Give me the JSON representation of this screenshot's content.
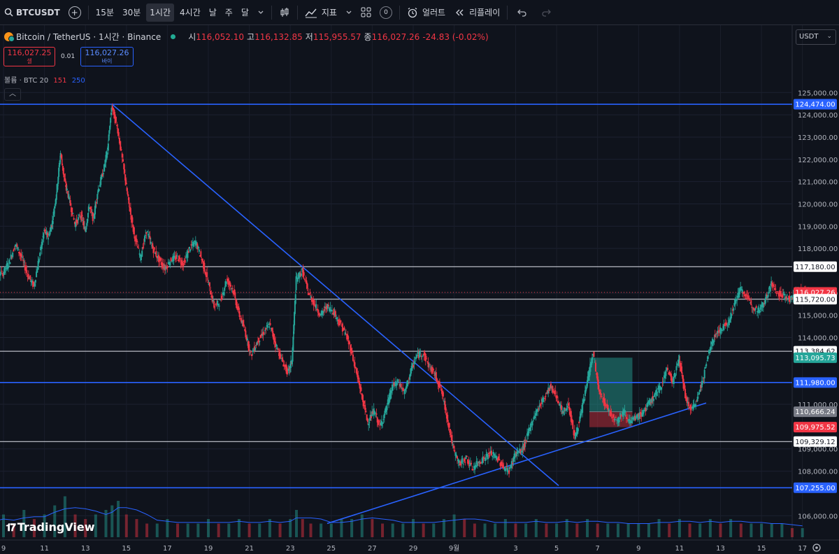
{
  "toolbar": {
    "symbol": "BTCUSDT",
    "add_label": "+",
    "tf_15m": "15분",
    "tf_30m": "30분",
    "tf_1h": "1시간",
    "tf_4h": "4시간",
    "tf_day": "날",
    "tf_week": "주",
    "tf_month": "달",
    "indicators_label": "지표",
    "layouts_count": "0",
    "alert_label": "얼러트",
    "replay_label": "리플레이"
  },
  "legend": {
    "title": "Bitcoin / TetherUS · 1시간 · Binance",
    "o_label": "시",
    "o_value": "116,052.10",
    "h_label": "고",
    "h_value": "116,132.85",
    "l_label": "저",
    "l_value": "115,955.57",
    "c_label": "종",
    "c_value": "116,027.26",
    "change": "-24.83 (-0.02%)"
  },
  "trade": {
    "sell_price": "116,027.25",
    "sell_label": "셀",
    "spread": "0.01",
    "buy_price": "116,027.26",
    "buy_label": "바이"
  },
  "volume_legend": {
    "label": "볼륨 · BTC 20",
    "v1": "151",
    "v2": "250"
  },
  "currency": "USDT",
  "branding": "TradingView",
  "colors": {
    "bg": "#0f131c",
    "up": "#26a69a",
    "down": "#f23645",
    "blue_line": "#2962ff",
    "white_line": "#e0e3eb"
  },
  "chart_data": {
    "type": "candlestick",
    "x_ticks": [
      "9",
      "11",
      "13",
      "15",
      "17",
      "19",
      "21",
      "23",
      "25",
      "27",
      "29",
      "9월",
      "3",
      "5",
      "7",
      "9",
      "11",
      "13",
      "15",
      "17"
    ],
    "y_ticks": [
      "125,000.00",
      "124,000.00",
      "123,000.00",
      "122,000.00",
      "121,000.00",
      "120,000.00",
      "119,000.00",
      "118,000.00",
      "116,000.00",
      "115,000.00",
      "114,000.00",
      "111,000.00",
      "109,000.00",
      "108,000.00",
      "106,000.00"
    ],
    "ylim": [
      105600,
      125700
    ],
    "price_labels": [
      {
        "text": "124,474.00",
        "kind": "blue"
      },
      {
        "text": "117,180.00",
        "kind": "white"
      },
      {
        "text": "116,027.26",
        "kind": "red"
      },
      {
        "text": "115,720.00",
        "kind": "white"
      },
      {
        "text": "113,384.62",
        "kind": "white"
      },
      {
        "text": "113,095.73",
        "kind": "teal"
      },
      {
        "text": "111,980.00",
        "kind": "blue"
      },
      {
        "text": "110,666.24",
        "kind": "gray"
      },
      {
        "text": "109,975.52",
        "kind": "red"
      },
      {
        "text": "109,329.12",
        "kind": "white"
      },
      {
        "text": "107,255.00",
        "kind": "blue"
      }
    ],
    "horizontal_levels": [
      {
        "price": 124474,
        "color": "blue"
      },
      {
        "price": 117180,
        "color": "white"
      },
      {
        "price": 115720,
        "color": "white"
      },
      {
        "price": 113384.62,
        "color": "white"
      },
      {
        "price": 111980,
        "color": "blue"
      },
      {
        "price": 109329.12,
        "color": "white"
      },
      {
        "price": 107255,
        "color": "blue"
      }
    ],
    "trend_lines": [
      {
        "from": {
          "day": 14.3,
          "price": 124474
        },
        "to": {
          "day": 36.1,
          "price": 107350
        }
      },
      {
        "from": {
          "day": 24.8,
          "price": 105650
        },
        "to": {
          "day": 43.3,
          "price": 111060
        }
      }
    ],
    "position_box": {
      "from_day": 37.6,
      "to_day": 39.7,
      "entry": 110666.24,
      "target": 113095.73,
      "stop": 109975.52
    },
    "current_price": 116027.26,
    "series": [
      {
        "name": "price",
        "values": [
          [
            8.0,
            116500
          ],
          [
            8.3,
            117300
          ],
          [
            8.6,
            116800
          ],
          [
            9.0,
            116900
          ],
          [
            9.3,
            117400
          ],
          [
            9.6,
            118200
          ],
          [
            9.9,
            117600
          ],
          [
            10.2,
            116800
          ],
          [
            10.5,
            116300
          ],
          [
            10.8,
            117800
          ],
          [
            11.0,
            118800
          ],
          [
            11.2,
            118500
          ],
          [
            11.4,
            119200
          ],
          [
            11.6,
            120500
          ],
          [
            11.8,
            122300
          ],
          [
            12.0,
            121000
          ],
          [
            12.2,
            120300
          ],
          [
            12.5,
            119100
          ],
          [
            12.8,
            119500
          ],
          [
            13.0,
            118800
          ],
          [
            13.2,
            119900
          ],
          [
            13.4,
            119300
          ],
          [
            13.6,
            120500
          ],
          [
            13.9,
            121500
          ],
          [
            14.1,
            122500
          ],
          [
            14.3,
            124400
          ],
          [
            14.6,
            123300
          ],
          [
            14.9,
            121500
          ],
          [
            15.1,
            120200
          ],
          [
            15.4,
            118600
          ],
          [
            15.7,
            117600
          ],
          [
            16.0,
            118800
          ],
          [
            16.3,
            118000
          ],
          [
            16.6,
            117500
          ],
          [
            16.9,
            117100
          ],
          [
            17.2,
            117500
          ],
          [
            17.5,
            117600
          ],
          [
            17.8,
            117300
          ],
          [
            18.1,
            118000
          ],
          [
            18.4,
            118300
          ],
          [
            18.7,
            117500
          ],
          [
            19.0,
            116500
          ],
          [
            19.3,
            115400
          ],
          [
            19.6,
            115600
          ],
          [
            19.9,
            116600
          ],
          [
            20.2,
            116200
          ],
          [
            20.5,
            115100
          ],
          [
            20.8,
            114300
          ],
          [
            21.1,
            113200
          ],
          [
            21.4,
            113800
          ],
          [
            21.7,
            114200
          ],
          [
            22.0,
            114600
          ],
          [
            22.3,
            113700
          ],
          [
            22.6,
            113000
          ],
          [
            22.9,
            112400
          ],
          [
            23.1,
            113000
          ],
          [
            23.3,
            116600
          ],
          [
            23.6,
            117000
          ],
          [
            23.9,
            116000
          ],
          [
            24.2,
            115500
          ],
          [
            24.5,
            115000
          ],
          [
            24.8,
            115400
          ],
          [
            25.1,
            115200
          ],
          [
            25.4,
            114700
          ],
          [
            25.7,
            114200
          ],
          [
            26.0,
            113400
          ],
          [
            26.3,
            112200
          ],
          [
            26.5,
            111400
          ],
          [
            26.8,
            110200
          ],
          [
            27.1,
            110700
          ],
          [
            27.4,
            110000
          ],
          [
            27.7,
            110800
          ],
          [
            28.0,
            111800
          ],
          [
            28.3,
            112000
          ],
          [
            28.6,
            111500
          ],
          [
            28.9,
            112500
          ],
          [
            29.2,
            113200
          ],
          [
            29.5,
            113300
          ],
          [
            29.8,
            112700
          ],
          [
            30.1,
            112300
          ],
          [
            30.4,
            111600
          ],
          [
            30.7,
            110300
          ],
          [
            31.0,
            108900
          ],
          [
            31.3,
            108300
          ],
          [
            31.6,
            108600
          ],
          [
            31.9,
            108100
          ],
          [
            32.2,
            108400
          ],
          [
            32.5,
            108600
          ],
          [
            32.8,
            108800
          ],
          [
            33.1,
            108600
          ],
          [
            33.4,
            108200
          ],
          [
            33.7,
            108000
          ],
          [
            34.0,
            108800
          ],
          [
            34.3,
            108900
          ],
          [
            34.5,
            109300
          ],
          [
            34.8,
            110200
          ],
          [
            35.1,
            110800
          ],
          [
            35.4,
            111300
          ],
          [
            35.7,
            111800
          ],
          [
            36.0,
            111400
          ],
          [
            36.3,
            110600
          ],
          [
            36.6,
            111000
          ],
          [
            36.9,
            109500
          ],
          [
            37.2,
            110500
          ],
          [
            37.5,
            112000
          ],
          [
            37.8,
            113300
          ],
          [
            38.1,
            111500
          ],
          [
            38.4,
            111000
          ],
          [
            38.7,
            110500
          ],
          [
            39.0,
            110300
          ],
          [
            39.3,
            110700
          ],
          [
            39.6,
            110200
          ],
          [
            39.9,
            110400
          ],
          [
            40.2,
            110600
          ],
          [
            40.5,
            111000
          ],
          [
            40.8,
            111400
          ],
          [
            41.1,
            111800
          ],
          [
            41.4,
            112600
          ],
          [
            41.7,
            112000
          ],
          [
            42.0,
            113100
          ],
          [
            42.3,
            111300
          ],
          [
            42.6,
            110700
          ],
          [
            42.9,
            111300
          ],
          [
            43.2,
            112300
          ],
          [
            43.5,
            113500
          ],
          [
            43.8,
            114200
          ],
          [
            44.1,
            114400
          ],
          [
            44.4,
            114700
          ],
          [
            44.7,
            115500
          ],
          [
            45.0,
            116200
          ],
          [
            45.3,
            115800
          ],
          [
            45.6,
            115400
          ],
          [
            45.9,
            115200
          ],
          [
            46.2,
            115700
          ],
          [
            46.5,
            116400
          ],
          [
            46.8,
            116000
          ],
          [
            47.1,
            115900
          ],
          [
            47.4,
            115700
          ],
          [
            47.7,
            116000
          ],
          [
            48.0,
            116100
          ],
          [
            48.3,
            116027
          ]
        ]
      }
    ],
    "volume": {
      "name": "볼륨 · BTC 20",
      "values": [
        [
          8.0,
          4
        ],
        [
          8.5,
          3
        ],
        [
          9.0,
          5
        ],
        [
          9.5,
          3
        ],
        [
          10.0,
          6
        ],
        [
          10.5,
          4
        ],
        [
          11.0,
          5
        ],
        [
          11.5,
          7
        ],
        [
          12.0,
          9
        ],
        [
          12.5,
          5
        ],
        [
          13.0,
          4
        ],
        [
          13.5,
          5
        ],
        [
          14.0,
          6
        ],
        [
          14.3,
          7
        ],
        [
          14.6,
          8
        ],
        [
          15.0,
          5
        ],
        [
          15.5,
          4
        ],
        [
          16.0,
          3
        ],
        [
          16.5,
          3
        ],
        [
          17.0,
          4
        ],
        [
          17.5,
          3
        ],
        [
          18.0,
          3
        ],
        [
          18.5,
          3
        ],
        [
          19.0,
          4
        ],
        [
          19.5,
          3
        ],
        [
          20.0,
          3
        ],
        [
          20.5,
          4
        ],
        [
          21.0,
          3
        ],
        [
          21.5,
          3
        ],
        [
          22.0,
          4
        ],
        [
          22.5,
          3
        ],
        [
          23.0,
          4
        ],
        [
          23.3,
          6
        ],
        [
          23.6,
          4
        ],
        [
          24.0,
          3
        ],
        [
          24.5,
          3
        ],
        [
          25.0,
          3
        ],
        [
          25.5,
          4
        ],
        [
          26.0,
          4
        ],
        [
          26.5,
          5
        ],
        [
          27.0,
          4
        ],
        [
          27.5,
          3
        ],
        [
          28.0,
          3
        ],
        [
          28.5,
          3
        ],
        [
          29.0,
          4
        ],
        [
          29.5,
          3
        ],
        [
          30.0,
          3
        ],
        [
          30.5,
          4
        ],
        [
          31.0,
          5
        ],
        [
          31.5,
          4
        ],
        [
          32.0,
          3
        ],
        [
          32.5,
          3
        ],
        [
          33.0,
          3
        ],
        [
          33.5,
          4
        ],
        [
          34.0,
          3
        ],
        [
          34.5,
          3
        ],
        [
          35.0,
          4
        ],
        [
          35.5,
          3
        ],
        [
          36.0,
          3
        ],
        [
          36.5,
          4
        ],
        [
          37.0,
          3
        ],
        [
          37.5,
          4
        ],
        [
          38.0,
          3
        ],
        [
          38.5,
          3
        ],
        [
          39.0,
          3
        ],
        [
          39.5,
          3
        ],
        [
          40.0,
          3
        ],
        [
          40.5,
          3
        ],
        [
          41.0,
          4
        ],
        [
          41.5,
          3
        ],
        [
          42.0,
          4
        ],
        [
          42.5,
          3
        ],
        [
          43.0,
          3
        ],
        [
          43.5,
          4
        ],
        [
          44.0,
          3
        ],
        [
          44.5,
          4
        ],
        [
          45.0,
          3
        ],
        [
          45.5,
          3
        ],
        [
          46.0,
          3
        ],
        [
          46.5,
          3
        ],
        [
          47.0,
          3
        ],
        [
          47.5,
          2
        ],
        [
          48.0,
          2
        ]
      ]
    }
  }
}
